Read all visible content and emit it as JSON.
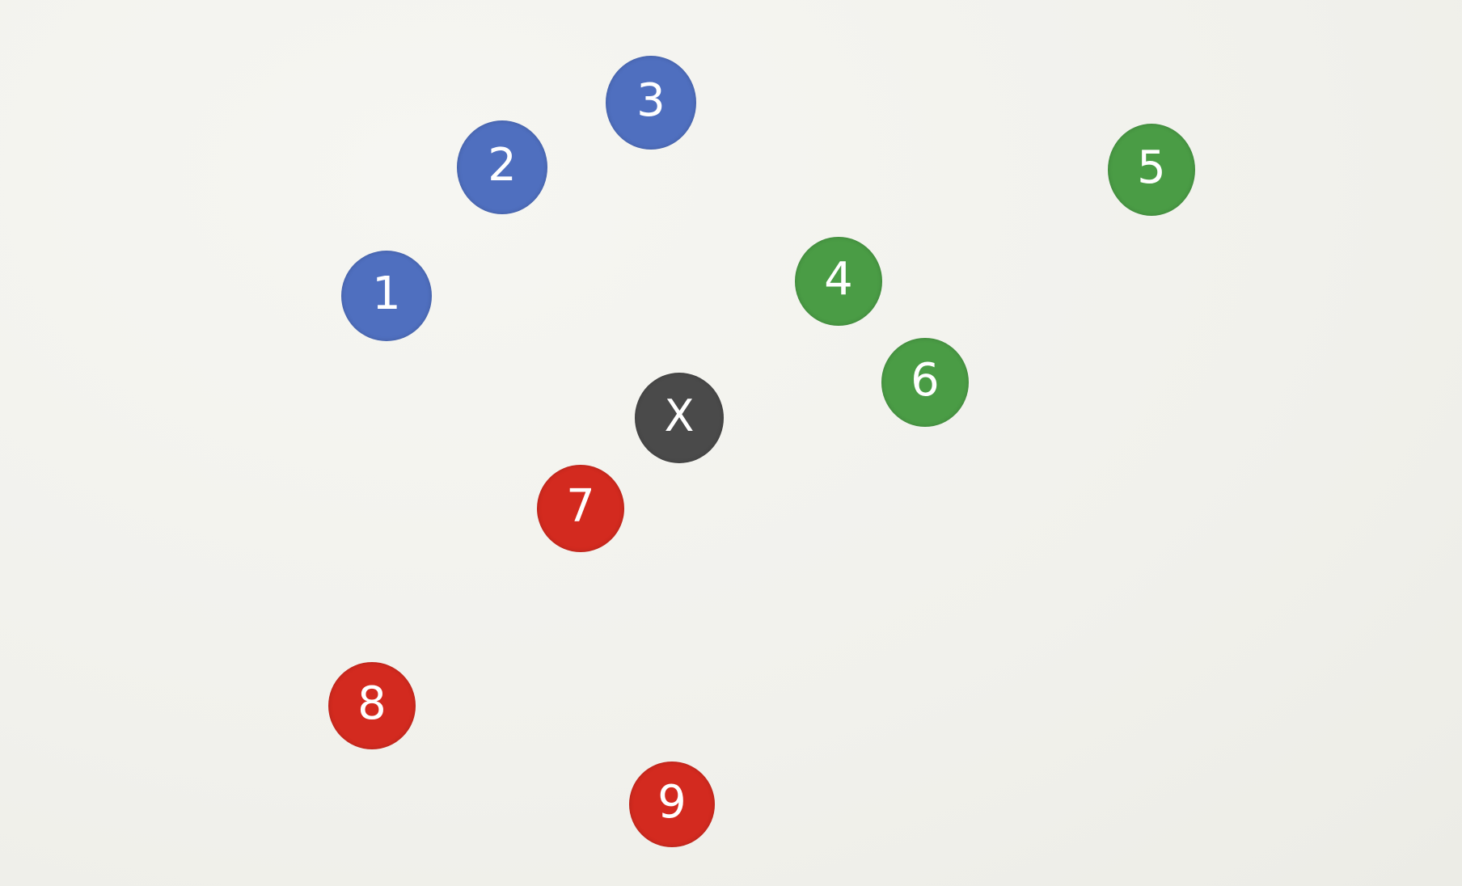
{
  "colors": {
    "background": "#f2f2ee",
    "blue": "#4f6fbf",
    "green": "#4a9c45",
    "red": "#d32a1f",
    "dark": "#4a4a4a",
    "label": "#ffffff"
  },
  "nodes": [
    {
      "label": "1",
      "group": "blue"
    },
    {
      "label": "2",
      "group": "blue"
    },
    {
      "label": "3",
      "group": "blue"
    },
    {
      "label": "4",
      "group": "green"
    },
    {
      "label": "5",
      "group": "green"
    },
    {
      "label": "6",
      "group": "green"
    },
    {
      "label": "X",
      "group": "dark"
    },
    {
      "label": "7",
      "group": "red"
    },
    {
      "label": "8",
      "group": "red"
    },
    {
      "label": "9",
      "group": "red"
    }
  ]
}
